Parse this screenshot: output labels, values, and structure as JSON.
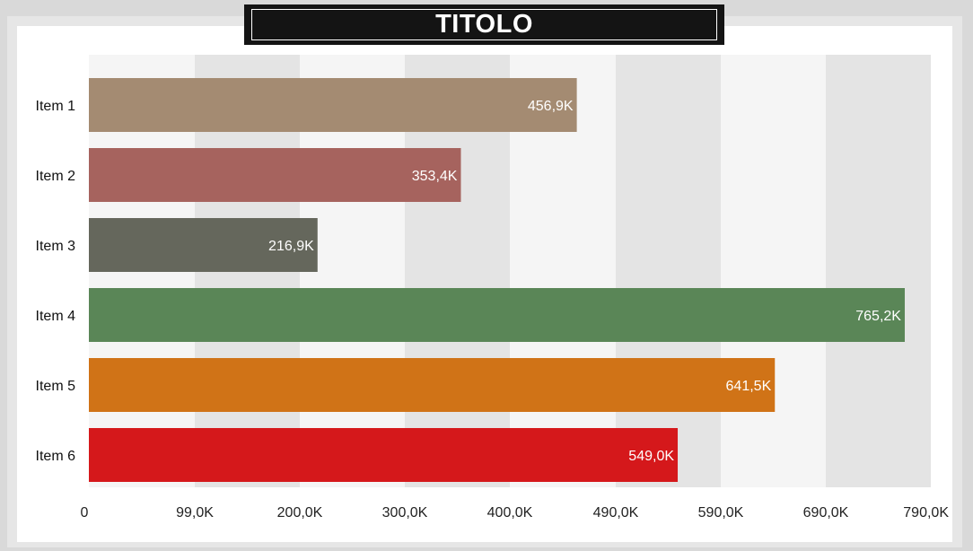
{
  "title": "TITOLO",
  "chart_data": {
    "type": "bar",
    "orientation": "horizontal",
    "title": "TITOLO",
    "categories": [
      "Item 1",
      "Item 2",
      "Item 3",
      "Item 4",
      "Item 5",
      "Item 6"
    ],
    "values": [
      456.9,
      353.4,
      216.9,
      765.2,
      641.5,
      549.0
    ],
    "value_labels": [
      "456,9K",
      "353,4K",
      "216,9K",
      "765,2K",
      "641,5K",
      "549,0K"
    ],
    "bar_colors": [
      "#a48b72",
      "#a6635e",
      "#65675c",
      "#5a8657",
      "#d07317",
      "#d5181b"
    ],
    "x_ticks": [
      0,
      99,
      200,
      300,
      400,
      490,
      590,
      690,
      790
    ],
    "x_tick_labels": [
      "0",
      "99,0K",
      "200,0K",
      "300,0K",
      "400,0K",
      "490,0K",
      "590,0K",
      "690,0K",
      "790,0K"
    ],
    "xlim": [
      0,
      790
    ],
    "xlabel": "",
    "ylabel": "",
    "grid": "alternating vertical bands",
    "band_colors": [
      "#f5f5f5",
      "#e4e4e4"
    ]
  }
}
